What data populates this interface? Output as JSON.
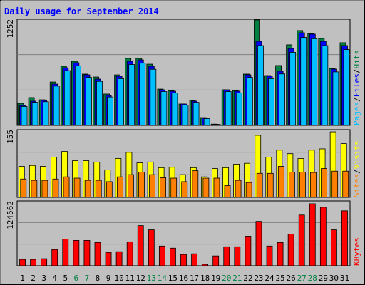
{
  "chart_data": [
    {
      "type": "bar",
      "title": "Daily usage for September 2014",
      "series": [
        {
          "name": "Hits",
          "color": "#008040",
          "values": [
            260,
            328,
            302,
            512,
            697,
            756,
            605,
            571,
            370,
            596,
            790,
            790,
            722,
            428,
            411,
            252,
            294,
            92,
            15,
            420,
            411,
            605,
            1244,
            588,
            706,
            950,
            1118,
            1084,
            1025,
            672,
            975
          ]
        },
        {
          "name": "Files",
          "color": "#0000ff",
          "values": [
            235,
            286,
            294,
            487,
            680,
            739,
            597,
            546,
            353,
            580,
            756,
            773,
            697,
            420,
            403,
            252,
            286,
            84,
            12,
            420,
            403,
            597,
            991,
            580,
            639,
            907,
            1092,
            1076,
            991,
            664,
            941
          ]
        },
        {
          "name": "Pages",
          "color": "#00c0ff",
          "values": [
            223,
            272,
            279,
            463,
            646,
            702,
            567,
            519,
            335,
            551,
            718,
            734,
            662,
            399,
            383,
            239,
            272,
            80,
            11,
            399,
            383,
            567,
            941,
            551,
            607,
            862,
            1037,
            1022,
            941,
            631,
            894
          ]
        }
      ],
      "legend_separator": "/",
      "ylim": [
        0,
        1252
      ],
      "yticks": [
        1252
      ]
    },
    {
      "type": "bar",
      "series": [
        {
          "name": "Visits",
          "color": "#ffff00",
          "values": [
            71,
            73,
            71,
            92,
            105,
            84,
            84,
            81,
            63,
            89,
            103,
            79,
            81,
            68,
            69,
            52,
            68,
            47,
            66,
            68,
            76,
            78,
            142,
            92,
            108,
            100,
            89,
            108,
            111,
            150,
            123
          ]
        },
        {
          "name": "Sites",
          "color": "#ff8000",
          "values": [
            42,
            39,
            39,
            42,
            47,
            44,
            39,
            39,
            36,
            47,
            52,
            58,
            52,
            45,
            44,
            36,
            61,
            44,
            44,
            27,
            39,
            34,
            55,
            55,
            71,
            58,
            58,
            57,
            66,
            60,
            60
          ]
        }
      ],
      "legend_separator": "/",
      "ylim": [
        0,
        155
      ],
      "yticks": [
        155
      ]
    },
    {
      "type": "bar",
      "series": [
        {
          "name": "KBytes",
          "color": "#ff0000",
          "values": [
            12186,
            12186,
            13540,
            31142,
            51452,
            48744,
            48744,
            44682,
            25726,
            27080,
            46036,
            77178,
            69054,
            37912,
            33850,
            21664,
            23018,
            2708,
            18956,
            36558,
            36558,
            56868,
            85302,
            37912,
            44682,
            60930,
            97488,
            119152,
            112382,
            69054,
            105612
          ]
        }
      ],
      "ylim": [
        0,
        124562
      ],
      "yticks": [
        124562
      ],
      "categories": [
        "1",
        "2",
        "3",
        "4",
        "5",
        "6",
        "7",
        "8",
        "9",
        "10",
        "11",
        "12",
        "13",
        "14",
        "15",
        "16",
        "17",
        "18",
        "19",
        "20",
        "21",
        "22",
        "23",
        "24",
        "25",
        "26",
        "27",
        "28",
        "29",
        "30",
        "31"
      ],
      "highlight_categories": [
        "6",
        "7",
        "13",
        "14",
        "20",
        "21",
        "27",
        "28"
      ],
      "highlight_color": "#008040",
      "category_color": "#000000"
    }
  ]
}
